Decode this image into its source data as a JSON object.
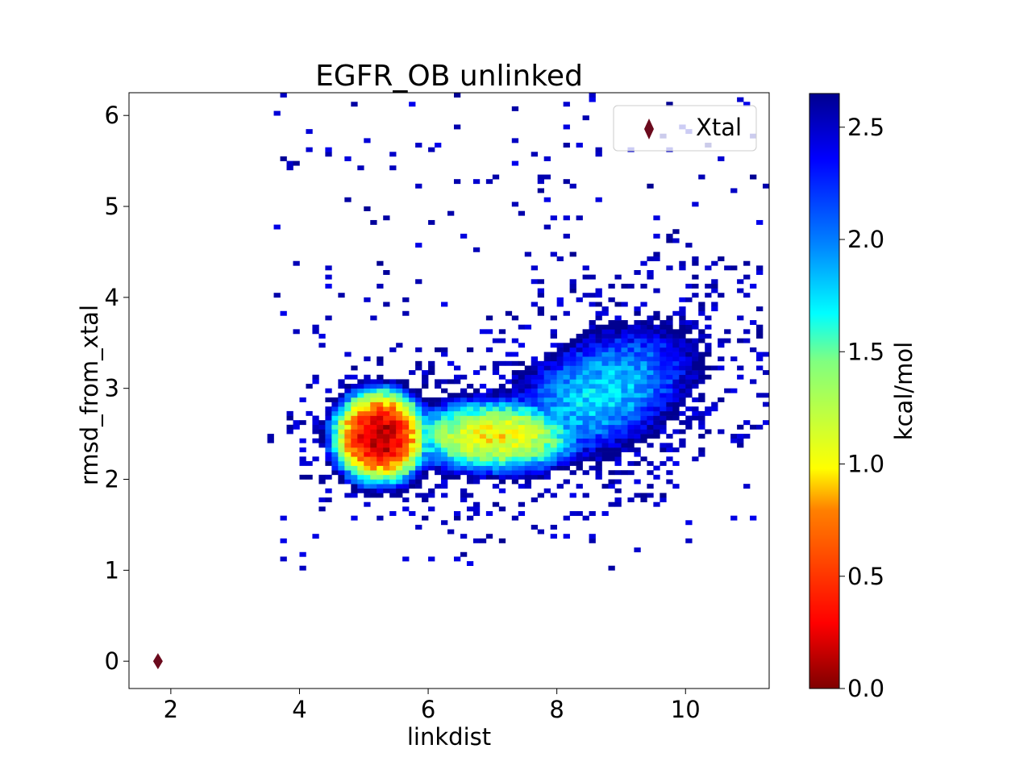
{
  "chart_data": {
    "type": "heatmap",
    "title": "EGFR_OB unlinked",
    "xlabel": "linkdist",
    "ylabel": "rmsd_from_xtal",
    "xlim": [
      1.35,
      11.3
    ],
    "ylim": [
      -0.3,
      6.25
    ],
    "xticks": [
      2,
      4,
      6,
      8,
      10
    ],
    "yticks": [
      0,
      1,
      2,
      3,
      4,
      5,
      6
    ],
    "grid": false,
    "colorbar": {
      "label": "kcal/mol",
      "range": [
        0.0,
        2.65
      ],
      "ticks": [
        0.0,
        0.5,
        1.0,
        1.5,
        2.0,
        2.5
      ],
      "tick_labels": [
        "0.0",
        "0.5",
        "1.0",
        "1.5",
        "2.0",
        "2.5"
      ],
      "colormap": "jet_reversed",
      "colors": [
        "#7f0000",
        "#ff0000",
        "#ff8000",
        "#ffff00",
        "#80ff80",
        "#00ffff",
        "#0080ff",
        "#0000ff",
        "#00008f"
      ]
    },
    "histogram": {
      "bin_width_x": 0.1,
      "bin_width_y": 0.05,
      "description_of_surface": "free-energy minimum near linkdist 5.2, rmsd 2.45; extended tail toward linkdist 10, rmsd 2.5-4",
      "minimum": {
        "x": 5.2,
        "y": 2.45,
        "value": 0.0
      },
      "secondary_basin": {
        "x": 7.0,
        "y": 2.45,
        "value": 1.0
      },
      "sparse_region": {
        "x_range": [
          3.6,
          11.2
        ],
        "y_range": [
          1.05,
          6.25
        ]
      }
    },
    "series": [
      {
        "name": "Xtal",
        "type": "scatter",
        "marker": "thin_diamond",
        "color": "#6b0a1d",
        "x": [
          1.8
        ],
        "y": [
          0.0
        ]
      }
    ],
    "legend": {
      "placement": "top-right",
      "entries": [
        "Xtal"
      ]
    }
  }
}
